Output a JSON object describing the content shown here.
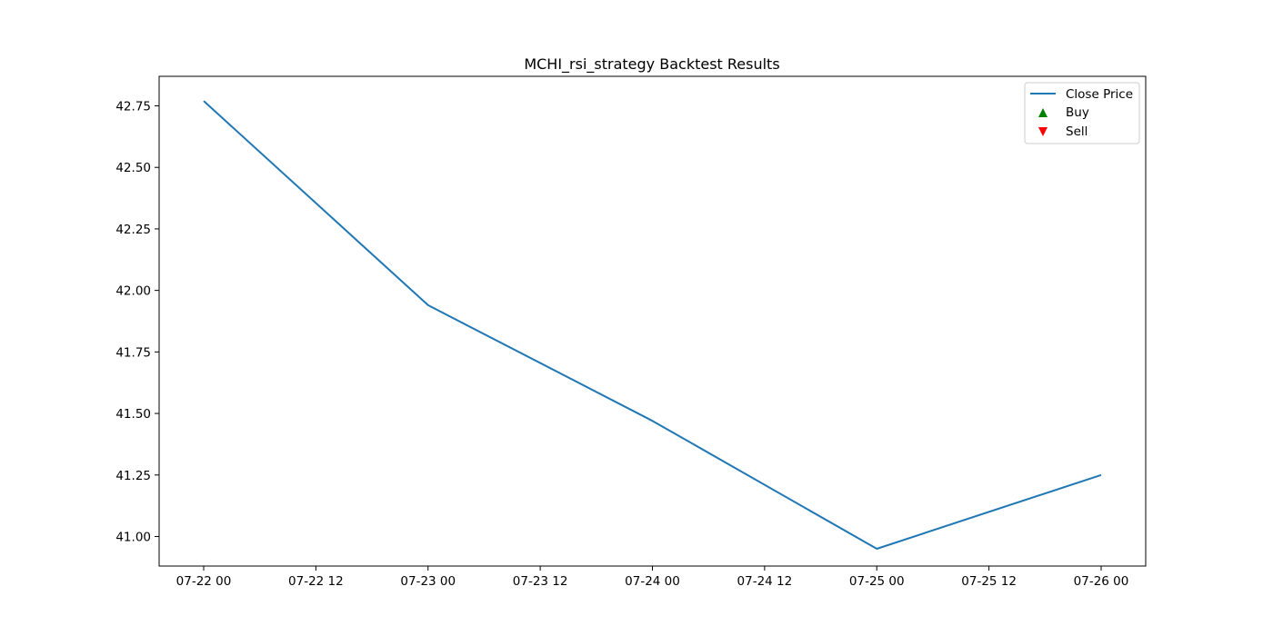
{
  "chart_data": {
    "type": "line",
    "title": "MCHI_rsi_strategy Backtest Results",
    "xlabel": "",
    "ylabel": "",
    "x": [
      "07-22 00",
      "07-23 00",
      "07-24 00",
      "07-25 00",
      "07-26 00"
    ],
    "x_ticks": [
      "07-22 00",
      "07-22 12",
      "07-23 00",
      "07-23 12",
      "07-24 00",
      "07-24 12",
      "07-25 00",
      "07-25 12",
      "07-26 00"
    ],
    "y_ticks": [
      "41.00",
      "41.25",
      "41.50",
      "41.75",
      "42.00",
      "42.25",
      "42.50",
      "42.75"
    ],
    "ylim": [
      40.88,
      42.87
    ],
    "series": [
      {
        "name": "Close Price",
        "values": [
          42.77,
          41.94,
          41.47,
          40.95,
          41.25
        ],
        "color": "#1f77b4"
      }
    ],
    "buy_signals": [],
    "sell_signals": [],
    "grid": false,
    "legend": {
      "position": "top-right",
      "entries": [
        {
          "label": "Close Price",
          "marker": "line",
          "color": "#1f77b4"
        },
        {
          "label": "Buy",
          "marker": "triangle-up",
          "color": "#008000"
        },
        {
          "label": "Sell",
          "marker": "triangle-down",
          "color": "#ff0000"
        }
      ]
    }
  }
}
